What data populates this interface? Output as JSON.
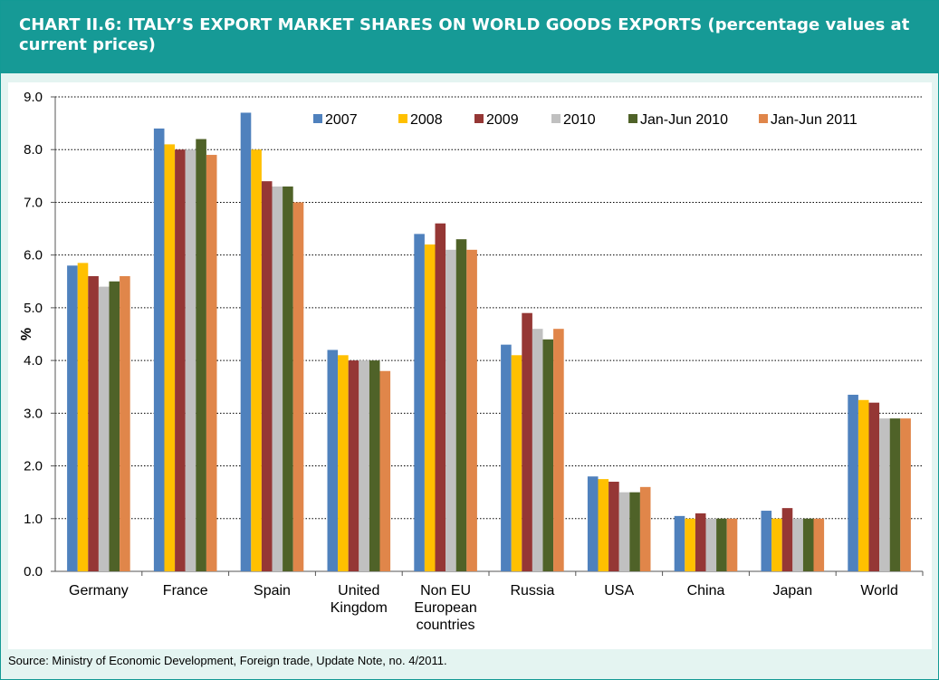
{
  "header": {
    "title": "CHART II.6: ITALY’S EXPORT MARKET SHARES ON WORLD GOODS EXPORTS (percentage values at current prices)"
  },
  "footer": {
    "source": "Source: Ministry of Economic Development, Foreign trade, Update Note, no. 4/2011."
  },
  "chart_data": {
    "type": "bar",
    "title": "",
    "xlabel": "",
    "ylabel": "%",
    "ylim": [
      0,
      9
    ],
    "yticks": [
      "0.0",
      "1.0",
      "2.0",
      "3.0",
      "4.0",
      "5.0",
      "6.0",
      "7.0",
      "8.0",
      "9.0"
    ],
    "grid": "horizontal dotted",
    "legend_position": "top-right",
    "categories": [
      [
        "Germany"
      ],
      [
        "France"
      ],
      [
        "Spain"
      ],
      [
        "United",
        "Kingdom"
      ],
      [
        "Non EU",
        "European",
        "countries"
      ],
      [
        "Russia"
      ],
      [
        "USA"
      ],
      [
        "China"
      ],
      [
        "Japan"
      ],
      [
        "World"
      ]
    ],
    "series": [
      {
        "name": "2007",
        "color": "#4f81bd",
        "values": [
          5.8,
          8.4,
          8.7,
          4.2,
          6.4,
          4.3,
          1.8,
          1.05,
          1.15,
          3.35
        ]
      },
      {
        "name": "2008",
        "color": "#ffc000",
        "values": [
          5.85,
          8.1,
          8.0,
          4.1,
          6.2,
          4.1,
          1.75,
          1.0,
          1.0,
          3.25
        ]
      },
      {
        "name": "2009",
        "color": "#953735",
        "values": [
          5.6,
          8.0,
          7.4,
          4.0,
          6.6,
          4.9,
          1.7,
          1.1,
          1.2,
          3.2
        ]
      },
      {
        "name": "2010",
        "color": "#c0c0c0",
        "values": [
          5.4,
          8.0,
          7.3,
          4.0,
          6.1,
          4.6,
          1.5,
          1.0,
          1.0,
          2.9
        ]
      },
      {
        "name": "Jan-Jun 2010",
        "color": "#4f6228",
        "values": [
          5.5,
          8.2,
          7.3,
          4.0,
          6.3,
          4.4,
          1.5,
          1.0,
          1.0,
          2.9
        ]
      },
      {
        "name": "Jan-Jun 2011",
        "color": "#e0864a",
        "values": [
          5.6,
          7.9,
          7.0,
          3.8,
          6.1,
          4.6,
          1.6,
          1.0,
          1.0,
          2.9
        ]
      }
    ]
  }
}
